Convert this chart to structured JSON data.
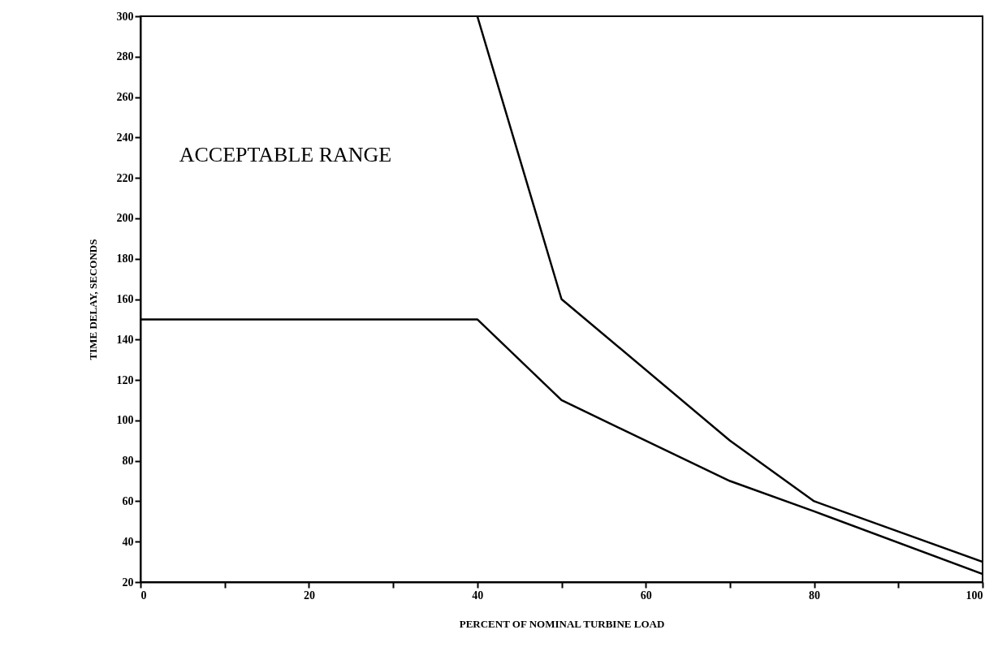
{
  "chart_data": {
    "type": "line",
    "xlabel": "PERCENT OF NOMINAL TURBINE LOAD",
    "ylabel": "TIME DELAY, SECONDS",
    "annotations": [
      "ACCEPTABLE RANGE"
    ],
    "series": [
      {
        "color": "#000000",
        "x": [
          40,
          50,
          70,
          80,
          100
        ],
        "values": [
          300,
          160,
          90,
          60,
          30
        ]
      },
      {
        "color": "#000000",
        "x": [
          0,
          40,
          50,
          70,
          80,
          100
        ],
        "values": [
          150,
          150,
          110,
          70,
          55,
          24
        ]
      }
    ],
    "xlim": [
      0,
      100
    ],
    "xticks": [
      0,
      {
        "value": 10,
        "label": null
      },
      20,
      {
        "value": 30,
        "label": null
      },
      40,
      {
        "value": 50,
        "label": null
      },
      60,
      {
        "value": 70,
        "label": null
      },
      80,
      {
        "value": 90,
        "label": null
      },
      100
    ],
    "ylim": [
      20,
      300
    ],
    "yticks": [
      20,
      40,
      60,
      80,
      100,
      120,
      140,
      160,
      180,
      200,
      220,
      240,
      260,
      280,
      300
    ],
    "grid": false,
    "marker": "none",
    "line_style": "solid"
  }
}
